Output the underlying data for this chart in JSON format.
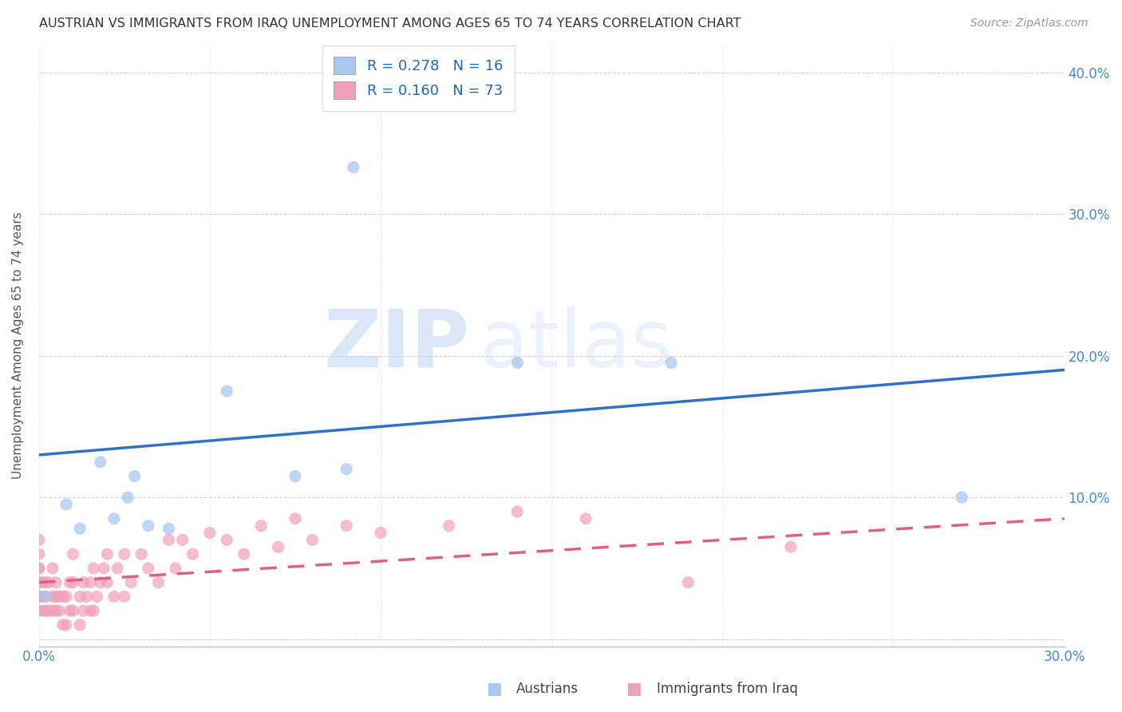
{
  "title": "AUSTRIAN VS IMMIGRANTS FROM IRAQ UNEMPLOYMENT AMONG AGES 65 TO 74 YEARS CORRELATION CHART",
  "source": "Source: ZipAtlas.com",
  "ylabel": "Unemployment Among Ages 65 to 74 years",
  "xlabel_austrians": "Austrians",
  "xlabel_iraqis": "Immigrants from Iraq",
  "xlim": [
    0.0,
    0.3
  ],
  "ylim": [
    -0.005,
    0.42
  ],
  "ytick_right_labels": [
    "10.0%",
    "20.0%",
    "30.0%",
    "40.0%"
  ],
  "ytick_right_positions": [
    0.1,
    0.2,
    0.3,
    0.4
  ],
  "legend_R_austrians": "0.278",
  "legend_N_austrians": "16",
  "legend_R_iraqis": "0.160",
  "legend_N_iraqis": "73",
  "color_austrians": "#a8c8f0",
  "color_iraqis": "#f0a0b8",
  "color_line_austrians": "#3070c8",
  "color_line_iraqis": "#e06080",
  "watermark_zip": "ZIP",
  "watermark_atlas": "atlas",
  "aus_line_x0": 0.0,
  "aus_line_y0": 0.13,
  "aus_line_x1": 0.3,
  "aus_line_y1": 0.19,
  "iraq_line_x0": 0.0,
  "iraq_line_y0": 0.04,
  "iraq_line_x1": 0.3,
  "iraq_line_y1": 0.085,
  "austrians_x": [
    0.002,
    0.008,
    0.012,
    0.018,
    0.022,
    0.026,
    0.028,
    0.032,
    0.038,
    0.055,
    0.075,
    0.09,
    0.14,
    0.185,
    0.27,
    0.092
  ],
  "austrians_y": [
    0.03,
    0.095,
    0.078,
    0.125,
    0.085,
    0.1,
    0.115,
    0.08,
    0.078,
    0.175,
    0.115,
    0.12,
    0.195,
    0.195,
    0.1,
    0.333
  ],
  "iraqis_x": [
    0.0,
    0.0,
    0.0,
    0.0,
    0.0,
    0.0,
    0.0,
    0.0,
    0.001,
    0.001,
    0.001,
    0.002,
    0.002,
    0.002,
    0.003,
    0.003,
    0.004,
    0.004,
    0.004,
    0.005,
    0.005,
    0.005,
    0.006,
    0.006,
    0.007,
    0.007,
    0.008,
    0.008,
    0.009,
    0.009,
    0.01,
    0.01,
    0.01,
    0.012,
    0.012,
    0.013,
    0.013,
    0.014,
    0.015,
    0.015,
    0.016,
    0.016,
    0.017,
    0.018,
    0.019,
    0.02,
    0.02,
    0.022,
    0.023,
    0.025,
    0.025,
    0.027,
    0.03,
    0.032,
    0.035,
    0.038,
    0.04,
    0.042,
    0.045,
    0.05,
    0.055,
    0.06,
    0.065,
    0.07,
    0.075,
    0.08,
    0.09,
    0.1,
    0.12,
    0.14,
    0.16,
    0.19,
    0.22
  ],
  "iraqis_y": [
    0.02,
    0.03,
    0.03,
    0.04,
    0.05,
    0.05,
    0.06,
    0.07,
    0.02,
    0.03,
    0.04,
    0.02,
    0.03,
    0.04,
    0.02,
    0.04,
    0.02,
    0.03,
    0.05,
    0.02,
    0.03,
    0.04,
    0.02,
    0.03,
    0.01,
    0.03,
    0.01,
    0.03,
    0.02,
    0.04,
    0.02,
    0.04,
    0.06,
    0.01,
    0.03,
    0.02,
    0.04,
    0.03,
    0.02,
    0.04,
    0.02,
    0.05,
    0.03,
    0.04,
    0.05,
    0.04,
    0.06,
    0.03,
    0.05,
    0.03,
    0.06,
    0.04,
    0.06,
    0.05,
    0.04,
    0.07,
    0.05,
    0.07,
    0.06,
    0.075,
    0.07,
    0.06,
    0.08,
    0.065,
    0.085,
    0.07,
    0.08,
    0.075,
    0.08,
    0.09,
    0.085,
    0.04,
    0.065
  ]
}
